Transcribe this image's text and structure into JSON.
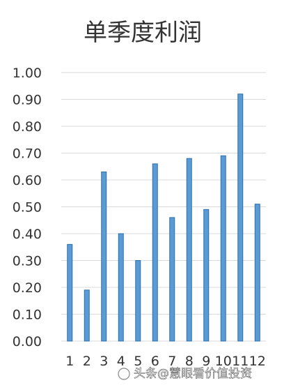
{
  "chart_data": {
    "type": "bar",
    "title": "单季度利润",
    "xlabel": "",
    "ylabel": "",
    "categories": [
      "1",
      "2",
      "3",
      "4",
      "5",
      "6",
      "7",
      "8",
      "9",
      "10",
      "11",
      "12"
    ],
    "values": [
      0.36,
      0.19,
      0.63,
      0.4,
      0.3,
      0.66,
      0.46,
      0.68,
      0.49,
      0.69,
      0.92,
      0.51
    ],
    "ylim": [
      0,
      1.0
    ],
    "yticks": [
      "0.00",
      "0.10",
      "0.20",
      "0.30",
      "0.40",
      "0.50",
      "0.60",
      "0.70",
      "0.80",
      "0.90",
      "1.00"
    ],
    "grid": true,
    "legend": "none",
    "bar_color": "#5b9bd5"
  },
  "watermark": {
    "text": "头条@慧眼看价值投资"
  }
}
